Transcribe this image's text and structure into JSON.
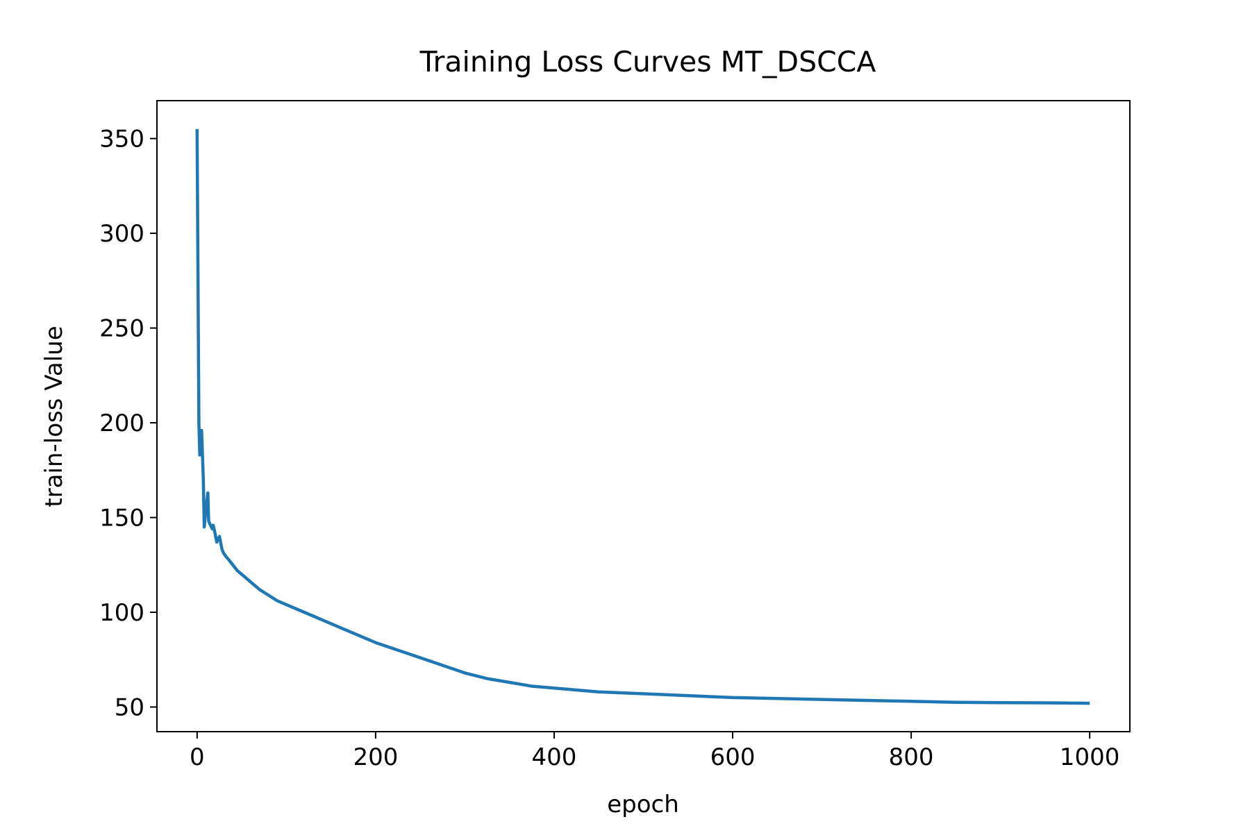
{
  "chart_data": {
    "type": "line",
    "title": "Training Loss Curves MT_DSCCA",
    "xlabel": "epoch",
    "ylabel": "train-loss Value",
    "xlim": [
      -45,
      1045
    ],
    "ylim": [
      37,
      370
    ],
    "xticks": [
      0,
      200,
      400,
      600,
      800,
      1000
    ],
    "yticks": [
      50,
      100,
      150,
      200,
      250,
      300,
      350
    ],
    "grid": false,
    "legend": "none",
    "line_color": "#1f77b4",
    "series": [
      {
        "x": [
          0,
          2,
          3,
          5,
          7,
          8,
          10,
          12,
          13,
          15,
          17,
          18,
          20,
          22,
          25,
          28,
          30,
          33,
          35,
          40,
          45,
          50,
          60,
          70,
          80,
          90,
          100,
          120,
          140,
          160,
          180,
          200,
          225,
          250,
          275,
          300,
          325,
          350,
          375,
          400,
          450,
          500,
          550,
          600,
          650,
          700,
          750,
          800,
          850,
          900,
          950,
          1000
        ],
        "y": [
          355,
          200,
          183,
          196,
          170,
          145,
          155,
          163,
          148,
          146,
          144,
          146,
          142,
          137,
          140,
          133,
          131,
          129,
          128,
          125,
          122,
          120,
          116,
          112,
          109,
          106,
          104,
          100,
          96,
          92,
          88,
          84,
          80,
          76,
          72,
          68,
          65,
          63,
          61,
          60,
          58,
          57,
          56,
          55,
          54.5,
          54,
          53.5,
          53,
          52.5,
          52.3,
          52.2,
          52
        ]
      }
    ]
  }
}
